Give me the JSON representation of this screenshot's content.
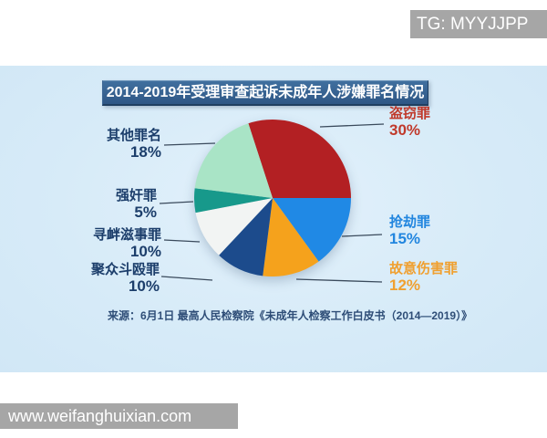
{
  "overlays": {
    "top_right_watermark": "TG: MYYJJPP",
    "bottom_watermark": "www.weifanghuixian.com"
  },
  "infographic": {
    "band_color": "#d7ebf8",
    "title_bar_color": "#35608e",
    "title_text_color": "#ffffff"
  },
  "chart_data": {
    "type": "pie",
    "title": "2014-2019年受理审查起诉未成年人涉嫌罪名情况",
    "source": "来源：6月1日 最高人民检察院《未成年人检察工作白皮书（2014—2019）》",
    "start_angle_deg": -18,
    "direction": "clockwise",
    "labels_layout": "outside-with-leader-lines",
    "legend": "none",
    "slices": [
      {
        "key": "theft",
        "label": "盗窃罪",
        "value": 30,
        "pct": "30%",
        "color": "#b32023",
        "label_color": "#c0392b",
        "side": "right"
      },
      {
        "key": "robbery",
        "label": "抢劫罪",
        "value": 15,
        "pct": "15%",
        "color": "#2089e5",
        "label_color": "#2286df",
        "side": "right"
      },
      {
        "key": "injury",
        "label": "故意伤害罪",
        "value": 12,
        "pct": "12%",
        "color": "#f5a21c",
        "label_color": "#f0a030",
        "side": "right"
      },
      {
        "key": "brawl",
        "label": "聚众斗殴罪",
        "value": 10,
        "pct": "10%",
        "color": "#1c4b8c",
        "label_color": "#1c3e6b",
        "side": "left"
      },
      {
        "key": "provocation",
        "label": "寻衅滋事罪",
        "value": 10,
        "pct": "10%",
        "color": "#f2f4f3",
        "label_color": "#1c3e6b",
        "side": "left"
      },
      {
        "key": "rape",
        "label": "强奸罪",
        "value": 5,
        "pct": "5%",
        "color": "#17998b",
        "label_color": "#1c3e6b",
        "side": "left"
      },
      {
        "key": "other",
        "label": "其他罪名",
        "value": 18,
        "pct": "18%",
        "color": "#a9e4c6",
        "label_color": "#1c3e6b",
        "side": "left"
      }
    ]
  }
}
